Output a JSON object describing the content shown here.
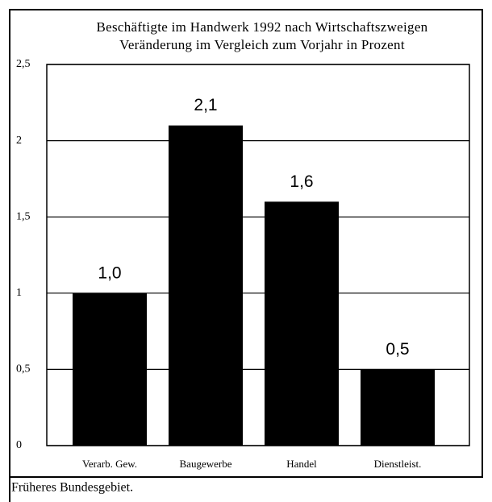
{
  "chart_data": {
    "type": "bar",
    "title": [
      "Beschäftigte im Handwerk 1992 nach Wirtschaftszweigen",
      "Veränderung im Vergleich zum Vorjahr in Prozent"
    ],
    "categories": [
      "Verarb. Gew.",
      "Baugewerbe",
      "Handel",
      "Dienstleist."
    ],
    "values": [
      1.0,
      2.1,
      1.6,
      0.5
    ],
    "value_labels": [
      "1,0",
      "2,1",
      "1,6",
      "0,5"
    ],
    "color": "#000000",
    "ylim": [
      0,
      2.5
    ],
    "yticks": [
      0,
      {
        "value": 0.5,
        "label": "0,5"
      },
      1,
      {
        "value": 1.5,
        "label": "1,5"
      },
      2,
      {
        "value": 2.5,
        "label": "2,5"
      }
    ],
    "grid": true,
    "note": "Früheres Bundesgebiet."
  }
}
